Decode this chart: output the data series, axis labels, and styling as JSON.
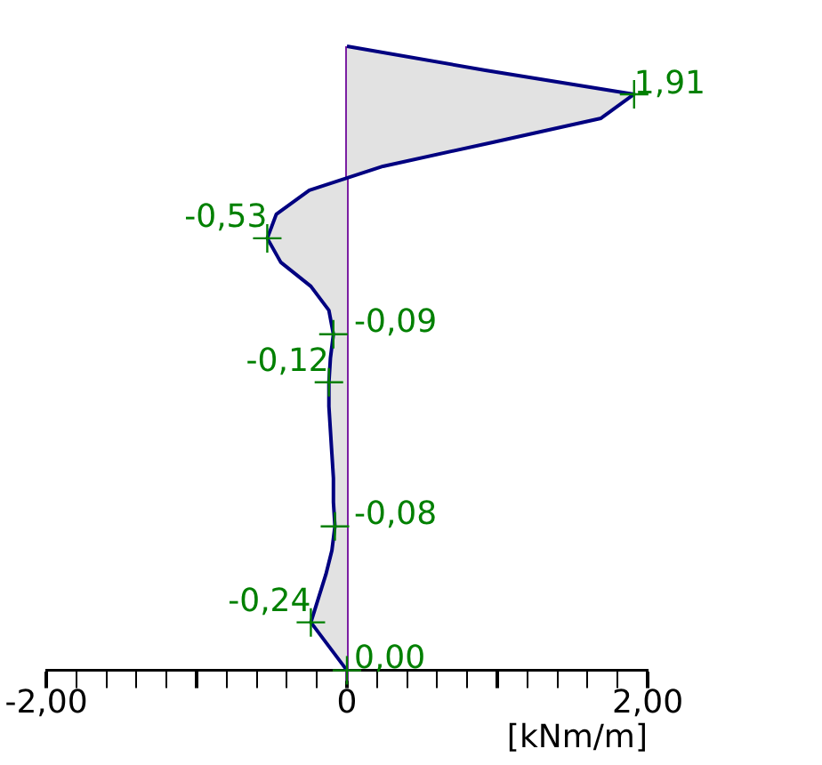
{
  "chart_data": {
    "type": "area",
    "orientation": "horizontal",
    "xlabel": "[kNm/m]",
    "xlim": [
      -2,
      2
    ],
    "categories": [
      null,
      null,
      null,
      null,
      null,
      null,
      null,
      null,
      null,
      null,
      null,
      null,
      null,
      null,
      null,
      null,
      null,
      null,
      null,
      null,
      null,
      null,
      null,
      null,
      null,
      null,
      null
    ],
    "xticks": [
      {
        "value": -2,
        "label": "-2,00"
      },
      {
        "value": -1.8,
        "label": null
      },
      {
        "value": -1.6,
        "label": null
      },
      {
        "value": -1.4,
        "label": null
      },
      {
        "value": -1.2,
        "label": null
      },
      {
        "value": -1,
        "label": null
      },
      {
        "value": -0.8,
        "label": null
      },
      {
        "value": -0.6,
        "label": null
      },
      {
        "value": -0.4,
        "label": null
      },
      {
        "value": -0.2,
        "label": null
      },
      {
        "value": 0,
        "label": "0"
      },
      {
        "value": 0.2,
        "label": null
      },
      {
        "value": 0.4,
        "label": null
      },
      {
        "value": 0.6,
        "label": null
      },
      {
        "value": 0.8,
        "label": null
      },
      {
        "value": 1,
        "label": null
      },
      {
        "value": 1.2,
        "label": null
      },
      {
        "value": 1.4,
        "label": null
      },
      {
        "value": 1.6,
        "label": null
      },
      {
        "value": 1.8,
        "label": null
      },
      {
        "value": 2,
        "label": "2,00"
      }
    ],
    "tick_labels": "x",
    "grid": false,
    "legend": false,
    "line_style": "solid",
    "ref_lines": [
      {
        "axis": "x",
        "value": 0,
        "color": "#7b1fa2"
      }
    ],
    "series": [
      {
        "color": "#000080",
        "values": [
          0,
          0.92,
          1.91,
          1.69,
          0.97,
          0.24,
          -0.25,
          -0.47,
          -0.53,
          -0.44,
          -0.24,
          -0.12,
          -0.09,
          -0.11,
          -0.12,
          -0.12,
          -0.11,
          -0.1,
          -0.09,
          -0.09,
          -0.08,
          -0.1,
          -0.14,
          -0.19,
          -0.24,
          -0.12,
          0
        ],
        "value_labels": [
          null,
          null,
          "1,91",
          null,
          null,
          null,
          null,
          null,
          "-0,53",
          null,
          null,
          null,
          "-0,09",
          null,
          "-0,12",
          null,
          null,
          null,
          null,
          null,
          "-0,08",
          null,
          null,
          null,
          "-0,24",
          null,
          "0,00"
        ]
      }
    ]
  }
}
